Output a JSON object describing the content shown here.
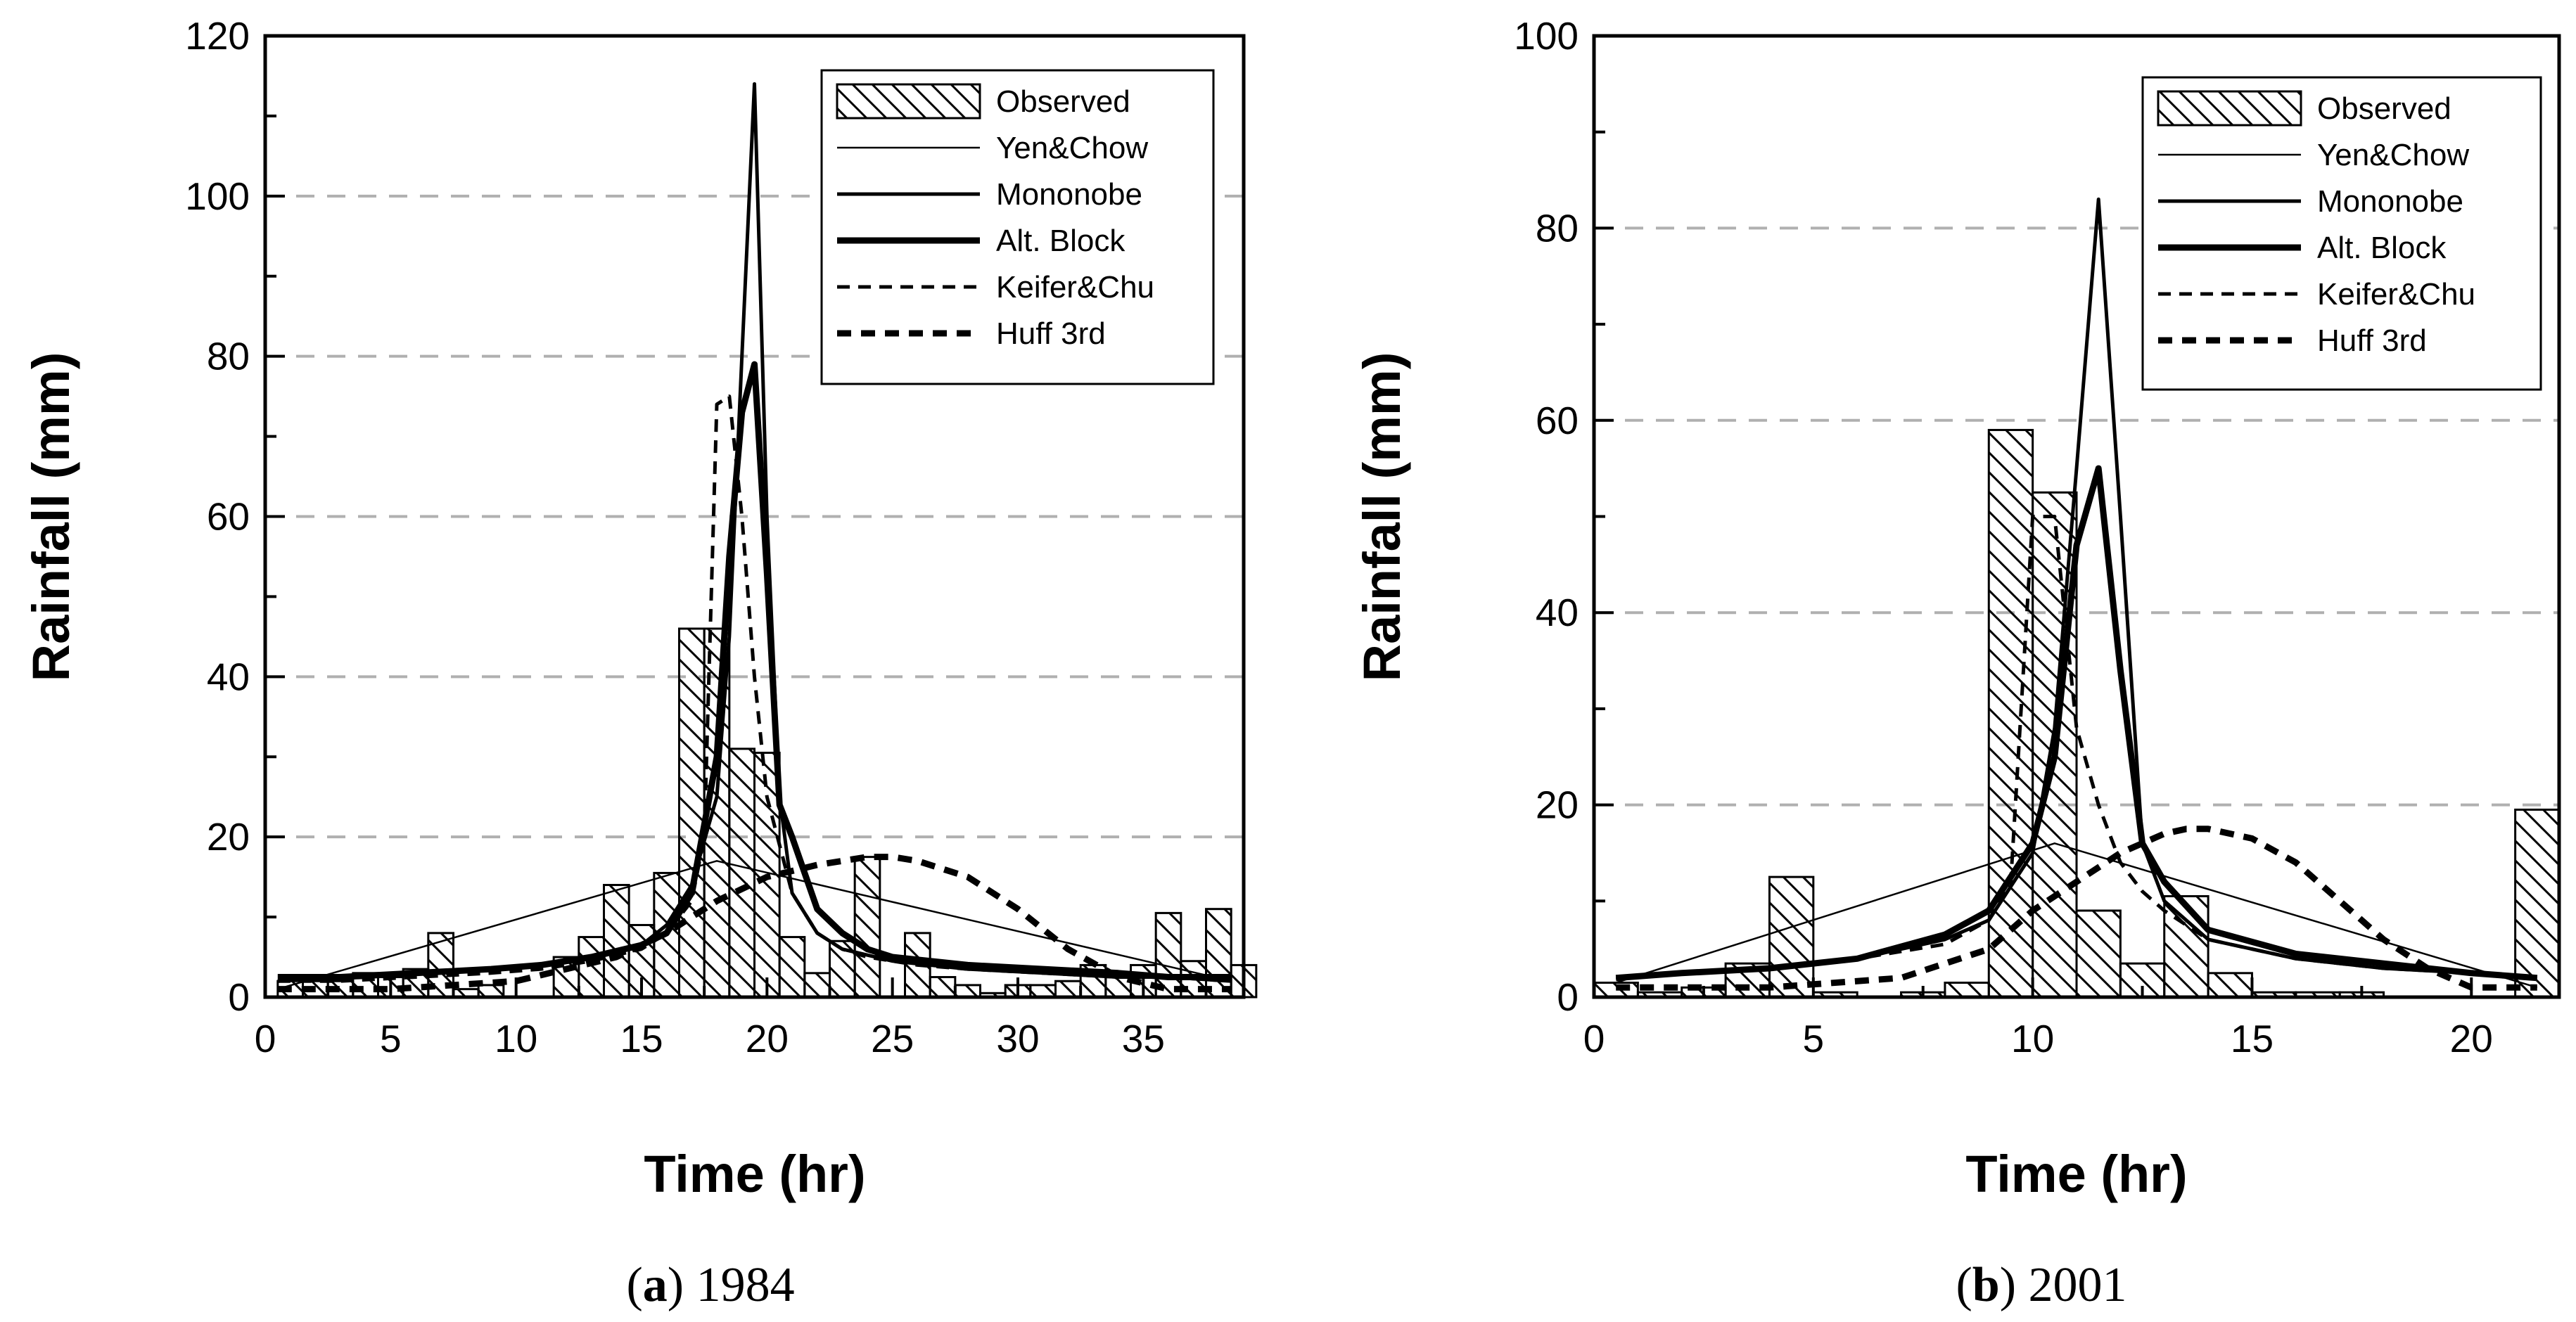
{
  "chart_data": [
    {
      "type": "bar",
      "caption_letter": "a",
      "caption_text": "1984",
      "xlabel": "Time (hr)",
      "ylabel": "Rainfall (mm)",
      "xlim": [
        0,
        39
      ],
      "ylim": [
        0,
        120
      ],
      "xticks": [
        0,
        5,
        10,
        15,
        20,
        25,
        30,
        35
      ],
      "yticks": [
        0,
        20,
        40,
        60,
        80,
        100,
        120
      ],
      "grid": "horizontal dashed",
      "legend_position": "top-right",
      "observed": {
        "name": "Observed",
        "x": [
          1,
          2,
          3,
          4,
          5,
          6,
          7,
          8,
          9,
          10,
          11,
          12,
          13,
          14,
          15,
          16,
          17,
          18,
          19,
          20,
          21,
          22,
          23,
          24,
          25,
          26,
          27,
          28,
          29,
          30,
          31,
          32,
          33,
          34,
          35,
          36,
          37,
          38,
          39
        ],
        "values": [
          2,
          2,
          2,
          3,
          2.5,
          3.5,
          8,
          1,
          1.5,
          0,
          0,
          5,
          7.5,
          14,
          9,
          15.5,
          46,
          46,
          31,
          30.5,
          7.5,
          3,
          7,
          17.5,
          0,
          8,
          2.5,
          1.5,
          0.5,
          1.5,
          1.5,
          2,
          4,
          2.5,
          4,
          10.5,
          4.5,
          11,
          4
        ]
      },
      "series": [
        {
          "name": "Yen&Chow",
          "style": "thin",
          "x": [
            0.5,
            18,
            38.5
          ],
          "y": [
            1,
            17,
            2
          ]
        },
        {
          "name": "Mononobe",
          "style": "medium",
          "x": [
            0.5,
            3,
            6,
            9,
            11,
            13,
            15,
            16,
            17,
            18,
            18.5,
            19,
            19.5,
            20,
            20.5,
            21,
            22,
            23,
            25,
            28,
            31,
            34,
            36,
            38.5
          ],
          "y": [
            2,
            2.5,
            3,
            3.5,
            4,
            5,
            6.5,
            9,
            14,
            25,
            45,
            80,
            114,
            60,
            25,
            13,
            8,
            6,
            4.5,
            3.5,
            3,
            2.5,
            2.5,
            2
          ]
        },
        {
          "name": "Alt. Block",
          "style": "thick",
          "x": [
            0.5,
            3,
            6,
            9,
            11,
            13,
            15,
            16,
            17,
            18,
            18.5,
            19,
            19.5,
            20,
            20.5,
            21,
            22,
            23,
            24,
            25,
            28,
            31,
            34,
            36,
            38.5
          ],
          "y": [
            2.5,
            2.5,
            3,
            3.5,
            4,
            5,
            6.5,
            8,
            13,
            30,
            55,
            73,
            79,
            53,
            24,
            20,
            11,
            8,
            6,
            5,
            4,
            3.5,
            3,
            2.5,
            2.5
          ]
        },
        {
          "name": "Keifer&Chu",
          "style": "thin-dash",
          "x": [
            0.5,
            3,
            6,
            9,
            11,
            13,
            15,
            16,
            17,
            17.5,
            18,
            18.5,
            19,
            19.5,
            20,
            21,
            22,
            23,
            24,
            26,
            28,
            31,
            34,
            36,
            38.5
          ],
          "y": [
            2,
            2,
            2.5,
            3,
            3.5,
            4.5,
            6,
            8,
            12,
            20,
            74,
            75,
            60,
            40,
            25,
            13,
            8,
            6,
            5,
            4,
            3.5,
            3,
            2.5,
            2.5,
            2
          ]
        },
        {
          "name": "Huff 3rd",
          "style": "thick-dash",
          "x": [
            0.5,
            5,
            10,
            14,
            16,
            18,
            20,
            22,
            24,
            25,
            26,
            28,
            30,
            32,
            34,
            36,
            38.5
          ],
          "y": [
            1,
            1,
            2,
            5,
            8,
            12,
            15,
            16.5,
            17.5,
            17.5,
            17,
            15,
            11,
            6,
            2.5,
            1,
            1
          ]
        }
      ]
    },
    {
      "type": "bar",
      "caption_letter": "b",
      "caption_text": "2001",
      "xlabel": "Time (hr)",
      "ylabel": "Rainfall (mm)",
      "xlim": [
        0,
        22
      ],
      "ylim": [
        0,
        100
      ],
      "xticks": [
        0,
        5,
        10,
        15,
        20
      ],
      "yticks": [
        0,
        20,
        40,
        60,
        80,
        100
      ],
      "grid": "horizontal dashed",
      "legend_position": "top-right",
      "observed": {
        "name": "Observed",
        "x": [
          0.5,
          1.5,
          2.5,
          3.5,
          4.5,
          5.5,
          6.5,
          7.5,
          8.5,
          9.5,
          10.5,
          11.5,
          12.5,
          13.5,
          14.5,
          15.5,
          16.5,
          17.5,
          18.5,
          19.5,
          20.5,
          21.5
        ],
        "values": [
          1.5,
          0.5,
          1,
          3.5,
          12.5,
          0.5,
          0,
          0.5,
          1.5,
          59,
          52.5,
          9,
          3.5,
          10.5,
          2.5,
          0.5,
          0.5,
          0.5,
          0,
          0,
          0,
          19.5
        ]
      },
      "series": [
        {
          "name": "Yen&Chow",
          "style": "thin",
          "x": [
            0.5,
            10.5,
            21.5
          ],
          "y": [
            1.5,
            16,
            1
          ]
        },
        {
          "name": "Mononobe",
          "style": "medium",
          "x": [
            0.5,
            2,
            4,
            6,
            8,
            9,
            10,
            10.5,
            11,
            11.5,
            12,
            12.5,
            13,
            14,
            16,
            18,
            20,
            21.5
          ],
          "y": [
            2,
            2.5,
            3,
            4,
            6,
            8,
            15,
            28,
            55,
            83,
            50,
            16,
            10,
            6,
            4,
            3,
            2.5,
            2
          ]
        },
        {
          "name": "Alt. Block",
          "style": "thick",
          "x": [
            0.5,
            2,
            4,
            6,
            8,
            9,
            10,
            10.5,
            11,
            11.5,
            12,
            12.5,
            13,
            14,
            16,
            18,
            20,
            21.5
          ],
          "y": [
            2,
            2.5,
            3,
            4,
            6.5,
            9,
            16,
            25,
            47,
            55,
            34,
            16,
            12,
            7,
            4.5,
            3.5,
            2.5,
            2
          ]
        },
        {
          "name": "Keifer&Chu",
          "style": "thin-dash",
          "x": [
            0.5,
            2,
            4,
            6,
            8,
            9,
            9.5,
            10,
            10.5,
            11,
            11.5,
            12,
            12.5,
            13,
            14,
            16,
            18,
            20,
            21.5
          ],
          "y": [
            2,
            2.5,
            3,
            4,
            5.5,
            8,
            12,
            50,
            50,
            28,
            20,
            14,
            11,
            9,
            6,
            4,
            3,
            2.5,
            2
          ]
        },
        {
          "name": "Huff 3rd",
          "style": "thick-dash",
          "x": [
            0.5,
            4,
            7,
            9,
            10,
            11,
            12,
            13,
            13.5,
            14,
            15,
            16,
            17,
            18,
            19,
            20,
            21.5
          ],
          "y": [
            1,
            1,
            2,
            5,
            9,
            12,
            15,
            17,
            17.5,
            17.5,
            16.5,
            14,
            10,
            6,
            3,
            1,
            1
          ]
        }
      ]
    }
  ]
}
